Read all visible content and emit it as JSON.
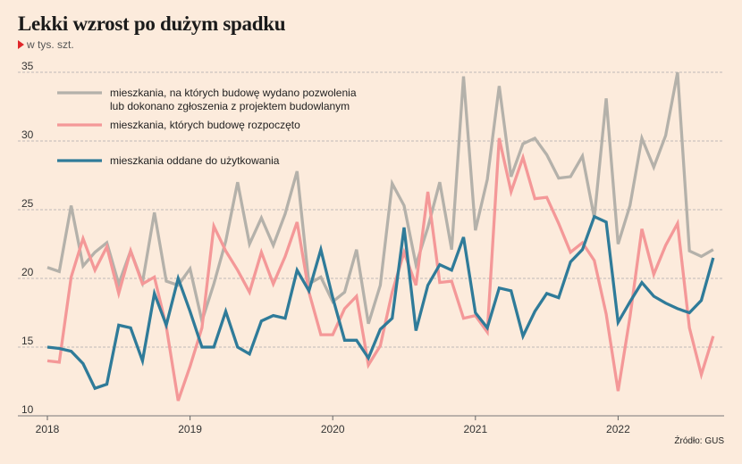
{
  "title": "Lekki wzrost po dużym spadku",
  "subtitle": "w tys. szt.",
  "source": "Źródło: GUS",
  "chart_data": {
    "type": "line",
    "x_start": "2018-01",
    "x_frequency": "monthly",
    "x_ticks": [
      "2018",
      "2019",
      "2020",
      "2021",
      "2022"
    ],
    "y_ticks": [
      "10",
      "15",
      "20",
      "25",
      "30",
      "35"
    ],
    "ylim": [
      10,
      36
    ],
    "grid": "horizontal dashed",
    "legend_placement": "top-left",
    "series": [
      {
        "name_lines": [
          "mieszkania, na których budowę wydano pozwolenia",
          "lub dokonano zgłoszenia z projektem budowlanym"
        ],
        "color": "#b4b1aa",
        "values": [
          20.8,
          20.5,
          25.3,
          20.9,
          21.9,
          22.6,
          19.6,
          22.0,
          19.7,
          24.8,
          19.8,
          19.5,
          20.7,
          16.9,
          19.6,
          22.7,
          27.0,
          22.5,
          24.4,
          22.4,
          24.7,
          27.8,
          19.6,
          20.1,
          18.3,
          19.0,
          22.1,
          16.7,
          19.5,
          26.9,
          25.3,
          21.0,
          23.7,
          27.0,
          22.1,
          34.7,
          23.5,
          27.2,
          34.0,
          27.4,
          29.8,
          30.2,
          29.0,
          27.3,
          27.4,
          28.9,
          24.4,
          33.1,
          22.5,
          25.3,
          30.2,
          28.1,
          30.4,
          35.0,
          22.0,
          21.6,
          22.1
        ]
      },
      {
        "name_lines": [
          "mieszkania, których budowę rozpoczęto"
        ],
        "color": "#f49898",
        "values": [
          14.0,
          13.9,
          20.1,
          22.9,
          20.6,
          22.3,
          18.9,
          22.0,
          19.6,
          20.1,
          16.5,
          11.1,
          13.6,
          16.4,
          23.8,
          22.0,
          20.6,
          19.0,
          21.9,
          19.6,
          21.6,
          24.1,
          19.0,
          15.9,
          15.9,
          17.8,
          18.7,
          13.7,
          15.1,
          19.0,
          21.9,
          19.5,
          26.3,
          19.7,
          19.8,
          17.1,
          17.3,
          16.1,
          30.2,
          26.3,
          28.8,
          25.8,
          25.9,
          24.0,
          21.9,
          22.6,
          21.3,
          17.4,
          11.8,
          17.2,
          23.6,
          20.3,
          22.4,
          24.0,
          16.4,
          13.0,
          15.8
        ]
      },
      {
        "name_lines": [
          "mieszkania oddane do użytkowania"
        ],
        "color": "#2f7b99",
        "values": [
          15.0,
          14.9,
          14.7,
          13.8,
          12.0,
          12.3,
          16.6,
          16.4,
          14.0,
          18.9,
          16.6,
          20.0,
          17.6,
          15.0,
          15.0,
          17.6,
          15.0,
          14.5,
          16.9,
          17.3,
          17.1,
          20.6,
          19.1,
          22.1,
          18.6,
          15.5,
          15.5,
          14.2,
          16.3,
          17.1,
          23.7,
          16.2,
          19.5,
          21.0,
          20.6,
          23.0,
          17.5,
          16.4,
          19.3,
          19.1,
          15.8,
          17.6,
          18.9,
          18.6,
          21.2,
          22.1,
          24.5,
          24.1,
          16.8,
          18.3,
          19.7,
          18.7,
          18.2,
          17.8,
          17.5,
          18.4,
          21.5
        ]
      }
    ]
  }
}
